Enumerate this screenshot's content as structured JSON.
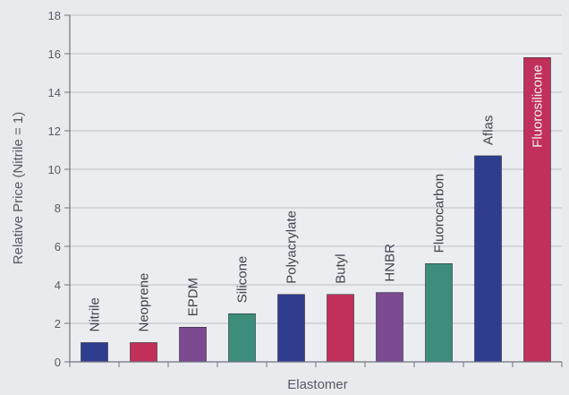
{
  "chart_data": {
    "type": "bar",
    "title": "",
    "xlabel": "Elastomer",
    "ylabel": "Relative Price (Nitrile = 1)",
    "ylim": [
      0,
      18
    ],
    "yticks": [
      0,
      2,
      4,
      6,
      8,
      10,
      12,
      14,
      16,
      18
    ],
    "grid": true,
    "legend": "none",
    "categories": [
      "Nitrile",
      "Neoprene",
      "EPDM",
      "Silicone",
      "Polyacrylate",
      "Butyl",
      "HNBR",
      "Fluorocarbon",
      "Aflas",
      "Fluorosilicone"
    ],
    "values": [
      1,
      1,
      1.8,
      2.5,
      3.5,
      3.5,
      3.6,
      5.1,
      10.7,
      15.8
    ],
    "bar_colors": [
      "#2f3d8f",
      "#c0305a",
      "#7b4a91",
      "#3c8e7a",
      "#2f3d8f",
      "#c0305a",
      "#7b4a91",
      "#3c8e7a",
      "#2f3d8f",
      "#c0305a"
    ],
    "label_inside": [
      false,
      false,
      false,
      false,
      false,
      false,
      false,
      false,
      false,
      true
    ]
  }
}
